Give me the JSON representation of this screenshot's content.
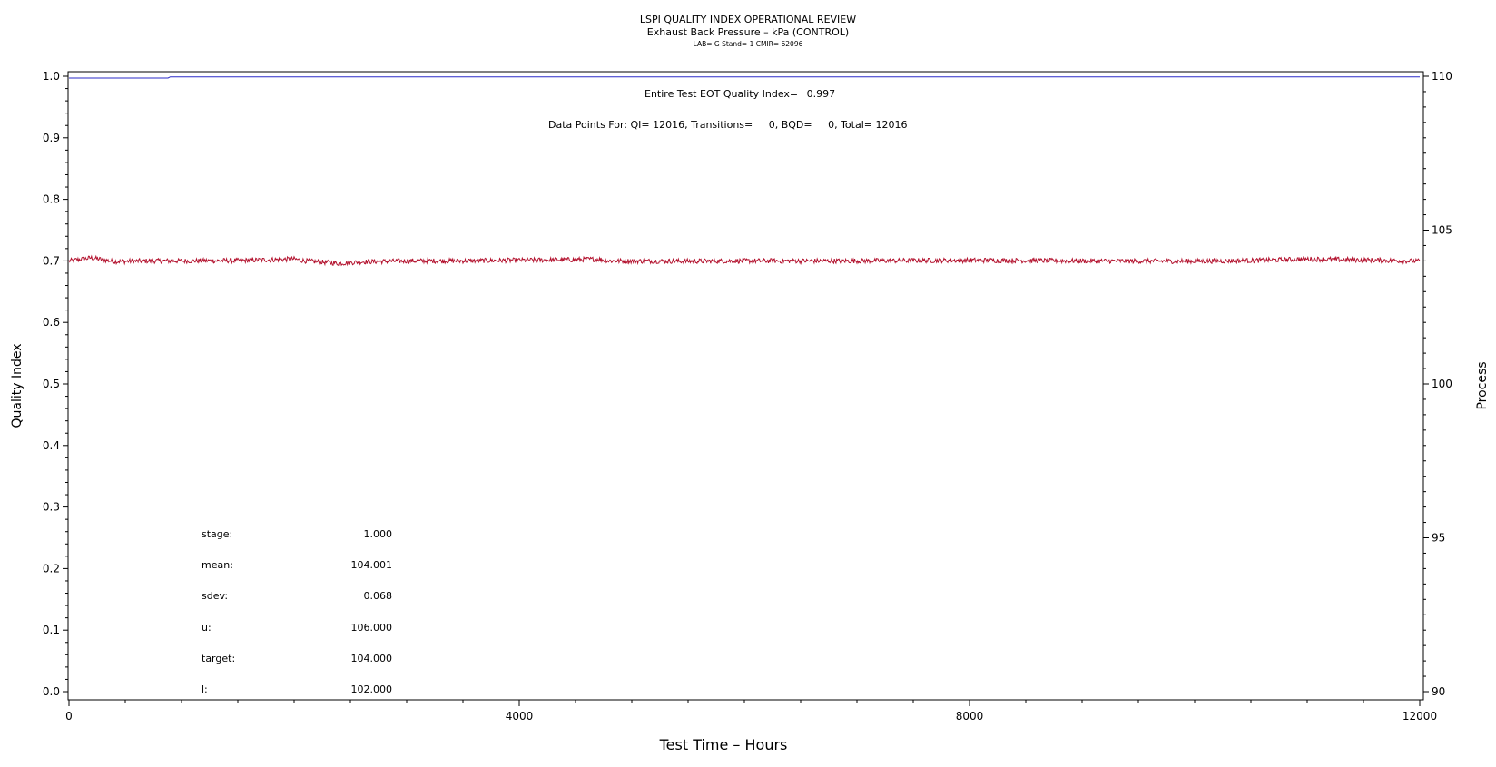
{
  "header": {
    "title": "LSPI QUALITY INDEX OPERATIONAL REVIEW",
    "subtitle": "Exhaust Back Pressure – kPa (CONTROL)",
    "lab_line": "LAB= G Stand= 1 CMIR= 62096"
  },
  "annotations": {
    "eot_label": "Entire Test EOT Quality Index=",
    "eot_value": "0.997",
    "datapoints": "Data Points For: QI= 12016, Transitions=     0, BQD=     0, Total= 12016"
  },
  "stats": [
    {
      "label": "stage:",
      "value": "1.000"
    },
    {
      "label": "mean:",
      "value": "104.001"
    },
    {
      "label": "sdev:",
      "value": "0.068"
    },
    {
      "label": "u:",
      "value": "106.000"
    },
    {
      "label": "target:",
      "value": "104.000"
    },
    {
      "label": "l:",
      "value": "102.000"
    }
  ],
  "chart_data": {
    "type": "line",
    "title": "LSPI QUALITY INDEX OPERATIONAL REVIEW",
    "subtitle": "Exhaust Back Pressure – kPa (CONTROL)",
    "xlabel": "Test Time – Hours",
    "ylabel": "Quality Index",
    "y2label": "Process",
    "xlim": [
      0,
      12000
    ],
    "ylim": [
      0,
      1
    ],
    "y2lim": [
      90,
      110
    ],
    "x_ticks": [
      0,
      4000,
      8000,
      12000
    ],
    "y_ticks": [
      "0.0",
      "0.1",
      "0.2",
      "0.3",
      "0.4",
      "0.5",
      "0.6",
      "0.7",
      "0.8",
      "0.9",
      "1.0"
    ],
    "y2_ticks": [
      90,
      95,
      100,
      105,
      110
    ],
    "series": [
      {
        "role": "quality-index",
        "axis": "left",
        "color": "#2b2bc8",
        "x": [
          0,
          880,
          900,
          12000
        ],
        "y": [
          0.997,
          0.997,
          0.999,
          0.999
        ]
      },
      {
        "role": "process",
        "axis": "right",
        "color": "#b3122e",
        "x": [
          0,
          200,
          400,
          700,
          1000,
          1500,
          2000,
          2100,
          2400,
          2600,
          3000,
          3500,
          4000,
          4500,
          4700,
          4800,
          5500,
          6000,
          7000,
          8000,
          9000,
          10000,
          10500,
          11000,
          11500,
          12000
        ],
        "y": [
          104.0,
          104.1,
          103.98,
          104.0,
          104.0,
          104.01,
          104.06,
          104.0,
          103.92,
          103.97,
          104.0,
          104.0,
          104.02,
          104.04,
          104.06,
          104.0,
          103.99,
          104.0,
          104.0,
          104.02,
          104.0,
          103.99,
          104.01,
          104.06,
          104.03,
          103.99
        ]
      }
    ]
  }
}
